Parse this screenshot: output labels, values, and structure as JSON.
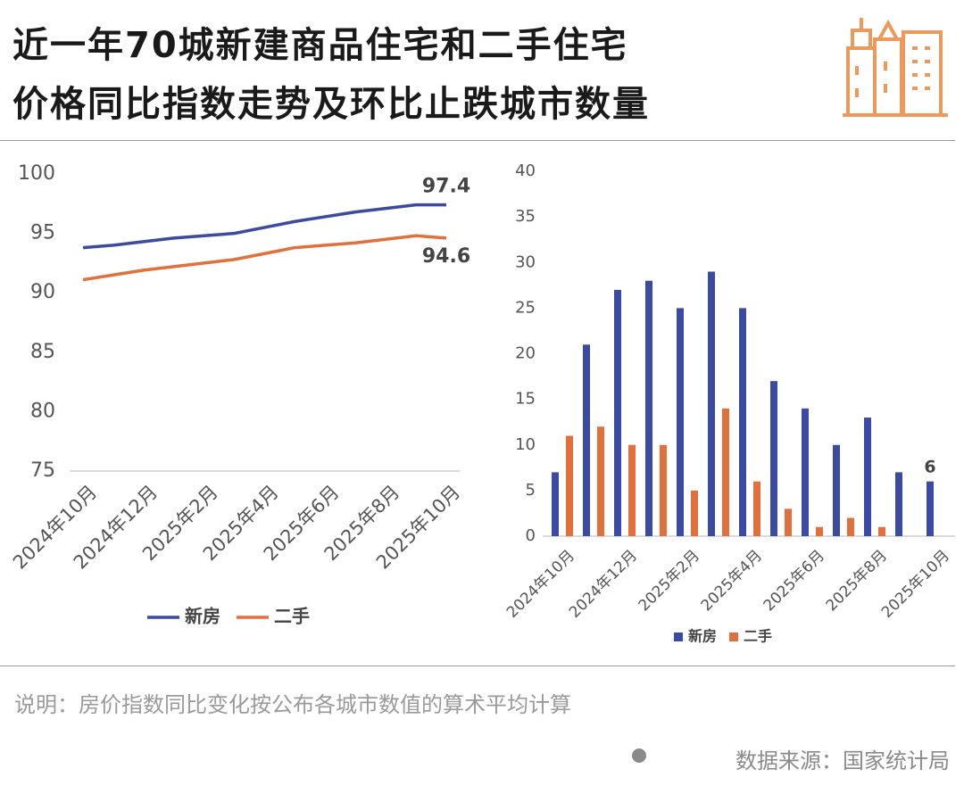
{
  "title": [
    "近一年70城新建商品住宅和二手住宅",
    "价格同比指数走势及环比止跌城市数量"
  ],
  "chart_data": [
    {
      "type": "line",
      "categories": [
        "2024年10月",
        null,
        "2024年12月",
        null,
        "2025年2月",
        null,
        "2025年4月",
        null,
        "2025年6月",
        null,
        "2025年8月",
        null,
        "2025年10月"
      ],
      "series": [
        {
          "name": "新房",
          "color": "#3c4aa0",
          "values": [
            93.8,
            94.0,
            94.3,
            94.6,
            94.8,
            95.0,
            95.5,
            96.0,
            96.4,
            96.8,
            97.1,
            97.4,
            97.4
          ]
        },
        {
          "name": "二手",
          "color": "#e2703c",
          "values": [
            91.1,
            91.5,
            91.9,
            92.2,
            92.5,
            92.8,
            93.3,
            93.8,
            94.0,
            94.2,
            94.5,
            94.8,
            94.6
          ]
        }
      ],
      "ylim": [
        75,
        100
      ],
      "yticks": [
        75,
        80,
        85,
        90,
        95,
        100
      ],
      "data_labels": "last",
      "legend": "bottom"
    },
    {
      "type": "bar",
      "categories": [
        "2024年10月",
        null,
        "2024年12月",
        null,
        "2025年2月",
        null,
        "2025年4月",
        null,
        "2025年6月",
        null,
        "2025年8月",
        null,
        "2025年10月"
      ],
      "series": [
        {
          "name": "新房",
          "color": "#3b4ba3",
          "values": [
            7,
            21,
            27,
            28,
            25,
            29,
            25,
            17,
            14,
            10,
            13,
            7,
            6
          ]
        },
        {
          "name": "二手",
          "color": "#e2703c",
          "values": [
            11,
            12,
            10,
            10,
            5,
            14,
            6,
            3,
            1,
            2,
            1,
            0,
            0
          ]
        }
      ],
      "ylim": [
        0,
        40
      ],
      "yticks": [
        0,
        5,
        10,
        15,
        20,
        25,
        30,
        35,
        40
      ],
      "data_labels": "last",
      "legend": "bottom"
    }
  ],
  "note": "说明：房价指数同比变化按公布各城市数值的算术平均计算",
  "source": "数据来源：国家统计局"
}
